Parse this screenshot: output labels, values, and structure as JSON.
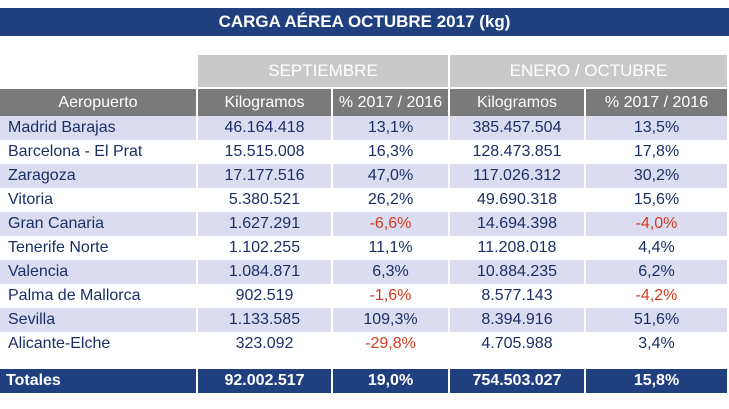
{
  "title": "CARGA AÉREA OCTUBRE 2017 (kg)",
  "groups": {
    "left": "SEPTIEMBRE",
    "right": "ENERO / OCTUBRE"
  },
  "headers": [
    "Aeropuerto",
    "Kilogramos",
    "% 2017 / 2016",
    "Kilogramos",
    "% 2017 / 2016"
  ],
  "rows": [
    {
      "airport": "Madrid Barajas",
      "kg_sep": "46.164.418",
      "pct_sep": "13,1%",
      "kg_ytd": "385.457.504",
      "pct_ytd": "13,5%"
    },
    {
      "airport": "Barcelona - El Prat",
      "kg_sep": "15.515.008",
      "pct_sep": "16,3%",
      "kg_ytd": "128.473.851",
      "pct_ytd": "17,8%"
    },
    {
      "airport": "Zaragoza",
      "kg_sep": "17.177.516",
      "pct_sep": "47,0%",
      "kg_ytd": "117.026.312",
      "pct_ytd": "30,2%"
    },
    {
      "airport": "Vitoria",
      "kg_sep": "5.380.521",
      "pct_sep": "26,2%",
      "kg_ytd": "49.690.318",
      "pct_ytd": "15,6%"
    },
    {
      "airport": "Gran Canaria",
      "kg_sep": "1.627.291",
      "pct_sep": "-6,6%",
      "kg_ytd": "14.694.398",
      "pct_ytd": "-4,0%"
    },
    {
      "airport": "Tenerife Norte",
      "kg_sep": "1.102.255",
      "pct_sep": "11,1%",
      "kg_ytd": "11.208.018",
      "pct_ytd": "4,4%"
    },
    {
      "airport": "Valencia",
      "kg_sep": "1.084.871",
      "pct_sep": "6,3%",
      "kg_ytd": "10.884.235",
      "pct_ytd": "6,2%"
    },
    {
      "airport": "Palma de Mallorca",
      "kg_sep": "902.519",
      "pct_sep": "-1,6%",
      "kg_ytd": "8.577.143",
      "pct_ytd": "-4,2%"
    },
    {
      "airport": "Sevilla",
      "kg_sep": "1.133.585",
      "pct_sep": "109,3%",
      "kg_ytd": "8.394.916",
      "pct_ytd": "51,6%"
    },
    {
      "airport": "Alicante-Elche",
      "kg_sep": "323.092",
      "pct_sep": "-29,8%",
      "kg_ytd": "4.705.988",
      "pct_ytd": "3,4%"
    }
  ],
  "totals": {
    "label": "Totales",
    "kg_sep": "92.002.517",
    "pct_sep": "19,0%",
    "kg_ytd": "754.503.027",
    "pct_ytd": "15,8%"
  },
  "colors": {
    "header_blue": "#1f3f7f",
    "row_alt": "#dcdcf0",
    "negative": "#d03a1f",
    "text_navy": "#1a2f66"
  }
}
